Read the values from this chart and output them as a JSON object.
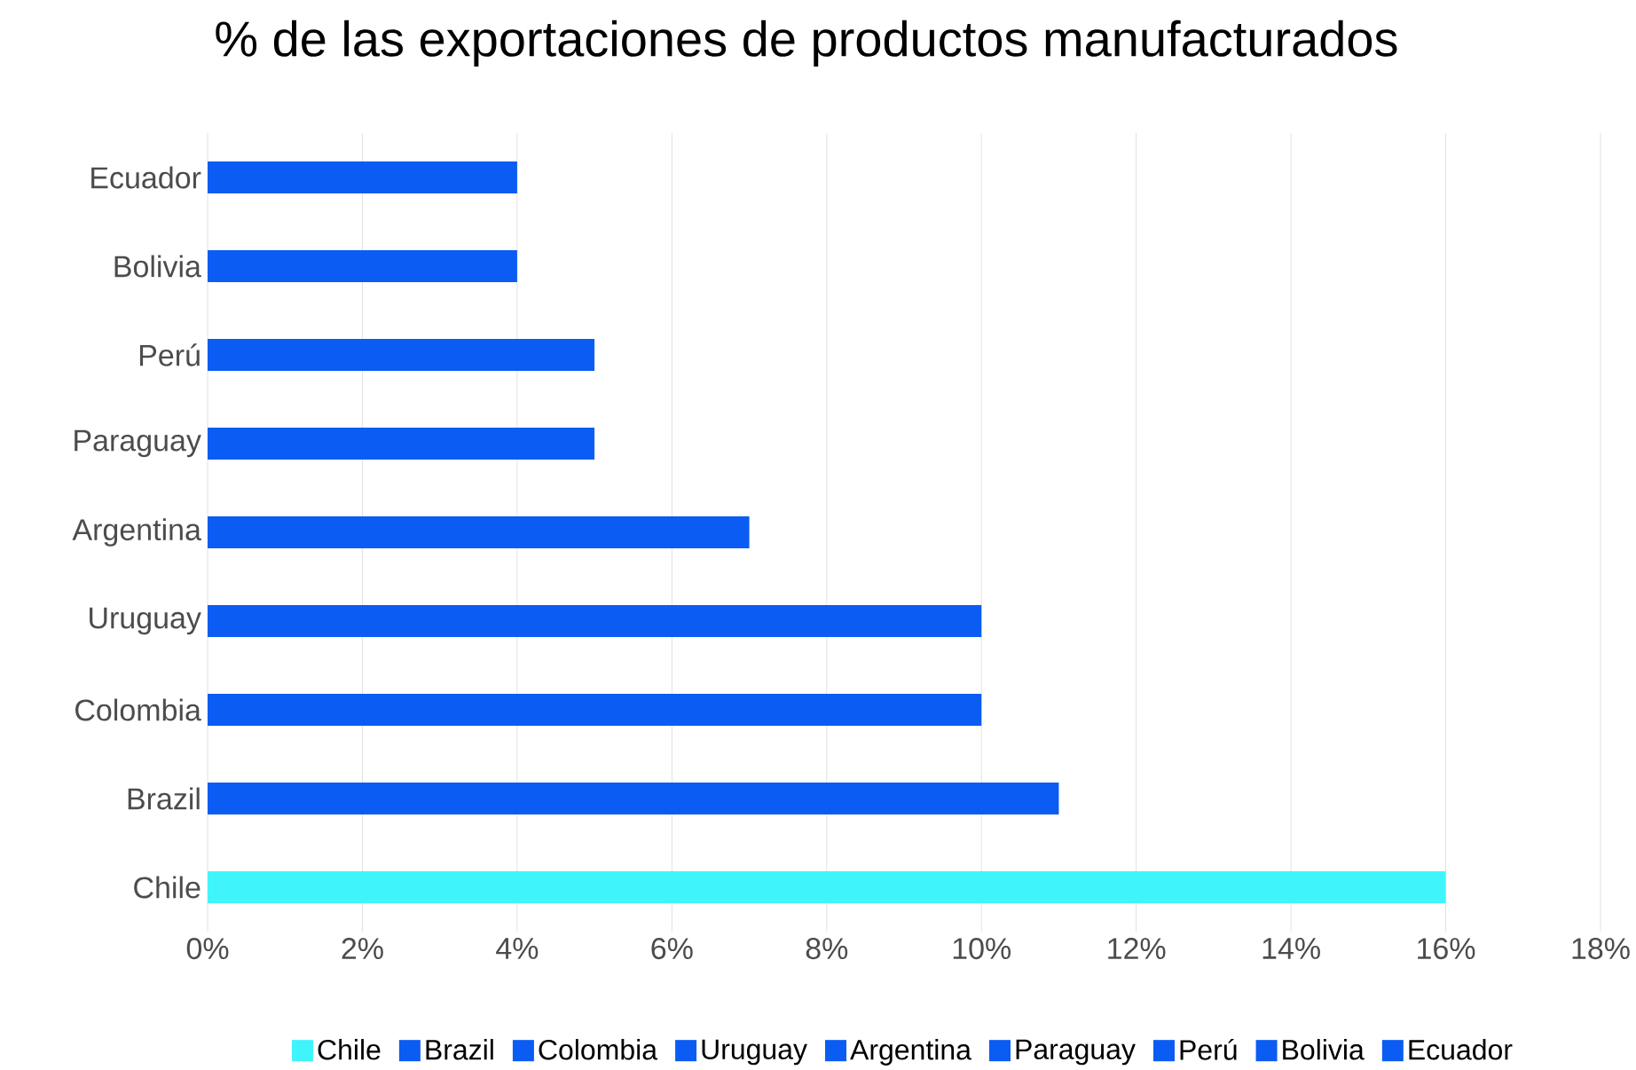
{
  "chart_data": {
    "type": "bar",
    "orientation": "horizontal",
    "title": "% de las exportaciones de productos manufacturados",
    "categories": [
      "Ecuador",
      "Bolivia",
      "Perú",
      "Paraguay",
      "Argentina",
      "Uruguay",
      "Colombia",
      "Brazil",
      "Chile"
    ],
    "series": [
      {
        "name": "Chile",
        "color": "#40f4fc",
        "values": [
          null,
          null,
          null,
          null,
          null,
          null,
          null,
          null,
          16
        ]
      },
      {
        "name": "Brazil",
        "color": "#0b5cf2",
        "values": [
          null,
          null,
          null,
          null,
          null,
          null,
          null,
          11,
          null
        ]
      },
      {
        "name": "Colombia",
        "color": "#0b5cf2",
        "values": [
          null,
          null,
          null,
          null,
          null,
          null,
          10,
          null,
          null
        ]
      },
      {
        "name": "Uruguay",
        "color": "#0b5cf2",
        "values": [
          null,
          null,
          null,
          null,
          null,
          10,
          null,
          null,
          null
        ]
      },
      {
        "name": "Argentina",
        "color": "#0b5cf2",
        "values": [
          null,
          null,
          null,
          null,
          7,
          null,
          null,
          null,
          null
        ]
      },
      {
        "name": "Paraguay",
        "color": "#0b5cf2",
        "values": [
          null,
          null,
          null,
          5,
          null,
          null,
          null,
          null,
          null
        ]
      },
      {
        "name": "Perú",
        "color": "#0b5cf2",
        "values": [
          null,
          null,
          5,
          null,
          null,
          null,
          null,
          null,
          null
        ]
      },
      {
        "name": "Bolivia",
        "color": "#0b5cf2",
        "values": [
          null,
          4,
          null,
          null,
          null,
          null,
          null,
          null,
          null
        ]
      },
      {
        "name": "Ecuador",
        "color": "#0b5cf2",
        "values": [
          4,
          null,
          null,
          null,
          null,
          null,
          null,
          null,
          null
        ]
      }
    ],
    "xlim": [
      0,
      18
    ],
    "xticks": [
      {
        "value": 0,
        "label": "0%"
      },
      {
        "value": 2,
        "label": "2%"
      },
      {
        "value": 4,
        "label": "4%"
      },
      {
        "value": 6,
        "label": "6%"
      },
      {
        "value": 8,
        "label": "8%"
      },
      {
        "value": 10,
        "label": "10%"
      },
      {
        "value": 12,
        "label": "12%"
      },
      {
        "value": 14,
        "label": "14%"
      },
      {
        "value": 16,
        "label": "16%"
      },
      {
        "value": 18,
        "label": "18%"
      }
    ],
    "grid": "x",
    "legend": "bottom"
  }
}
